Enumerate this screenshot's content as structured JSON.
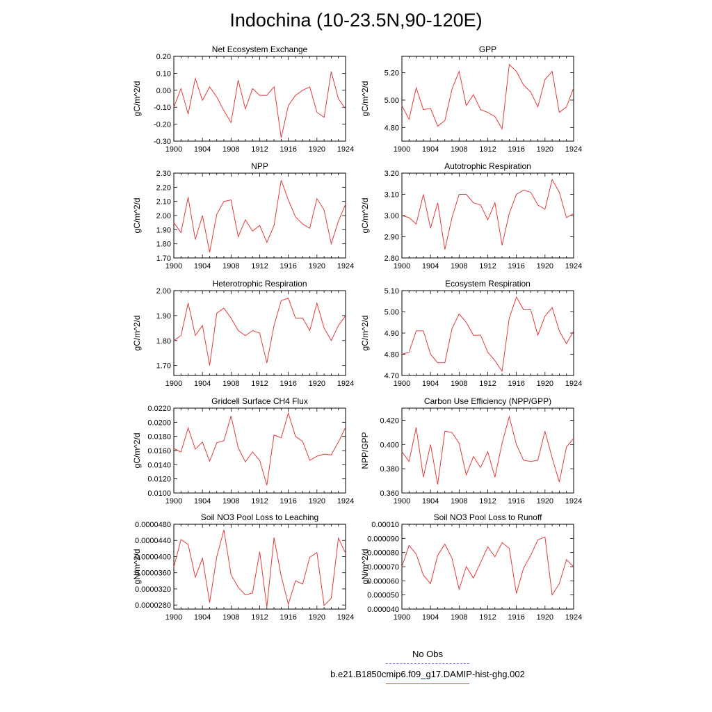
{
  "title": "Indochina (10-23.5N,90-120E)",
  "legend": {
    "obs_label": "No Obs",
    "obs_color": "#6b6bd6",
    "model_label": "b.e21.B1850cmip6.f09_g17.DAMIP-hist-ghg.002",
    "model_color": "#e33b3b"
  },
  "chart_data": [
    {
      "type": "line",
      "title": "Net Ecosystem Exchange",
      "ylabel": "gC/m^2/d",
      "xlim": [
        1900,
        1924
      ],
      "ylim": [
        -0.3,
        0.2
      ],
      "xticks": [
        "1900",
        "1904",
        "1908",
        "1912",
        "1916",
        "1920",
        "1924"
      ],
      "yticks": [
        "-0.30",
        "-0.20",
        "-0.10",
        "0.00",
        "0.10",
        "0.20"
      ],
      "x": [
        1900,
        1901,
        1902,
        1903,
        1904,
        1905,
        1906,
        1907,
        1908,
        1909,
        1910,
        1911,
        1912,
        1913,
        1914,
        1915,
        1916,
        1917,
        1918,
        1919,
        1920,
        1921,
        1922,
        1923,
        1924
      ],
      "series": [
        {
          "name": "b.e21.B1850cmip6.f09_g17.DAMIP-hist-ghg.002",
          "values": [
            -0.1,
            0.01,
            -0.14,
            0.07,
            -0.06,
            0.02,
            -0.04,
            -0.12,
            -0.19,
            0.06,
            -0.11,
            0.01,
            -0.03,
            -0.03,
            0.02,
            -0.28,
            -0.09,
            -0.03,
            0.0,
            0.02,
            -0.13,
            -0.16,
            0.11,
            -0.05,
            -0.11
          ]
        }
      ]
    },
    {
      "type": "line",
      "title": "GPP",
      "ylabel": "gC/m^2/d",
      "xlim": [
        1900,
        1924
      ],
      "ylim": [
        4.7,
        5.32
      ],
      "xticks": [
        "1900",
        "1904",
        "1908",
        "1912",
        "1916",
        "1920",
        "1924"
      ],
      "yticks": [
        "4.80",
        "5.00",
        "5.20"
      ],
      "x": [
        1900,
        1901,
        1902,
        1903,
        1904,
        1905,
        1906,
        1907,
        1908,
        1909,
        1910,
        1911,
        1912,
        1913,
        1914,
        1915,
        1916,
        1917,
        1918,
        1919,
        1920,
        1921,
        1922,
        1923,
        1924
      ],
      "series": [
        {
          "name": "b.e21.B1850cmip6.f09_g17.DAMIP-hist-ghg.002",
          "values": [
            4.96,
            4.86,
            5.09,
            4.93,
            4.94,
            4.81,
            4.85,
            5.08,
            5.21,
            4.96,
            5.04,
            4.93,
            4.91,
            4.88,
            4.79,
            5.26,
            5.21,
            5.11,
            5.06,
            4.95,
            5.15,
            5.21,
            4.91,
            4.95,
            5.09
          ]
        }
      ]
    },
    {
      "type": "line",
      "title": "NPP",
      "ylabel": "gC/m^2/d",
      "xlim": [
        1900,
        1924
      ],
      "ylim": [
        1.7,
        2.3
      ],
      "xticks": [
        "1900",
        "1904",
        "1908",
        "1912",
        "1916",
        "1920",
        "1924"
      ],
      "yticks": [
        "1.70",
        "1.80",
        "1.90",
        "2.00",
        "2.10",
        "2.20",
        "2.30"
      ],
      "x": [
        1900,
        1901,
        1902,
        1903,
        1904,
        1905,
        1906,
        1907,
        1908,
        1909,
        1910,
        1911,
        1912,
        1913,
        1914,
        1915,
        1916,
        1917,
        1918,
        1919,
        1920,
        1921,
        1922,
        1923,
        1924
      ],
      "series": [
        {
          "name": "b.e21.B1850cmip6.f09_g17.DAMIP-hist-ghg.002",
          "values": [
            1.95,
            1.88,
            2.13,
            1.83,
            2.0,
            1.74,
            2.01,
            2.1,
            2.11,
            1.85,
            1.97,
            1.89,
            1.93,
            1.81,
            1.93,
            2.25,
            2.11,
            1.99,
            1.94,
            1.91,
            2.12,
            2.04,
            1.8,
            1.96,
            2.08
          ]
        }
      ]
    },
    {
      "type": "line",
      "title": "Autotrophic Respiration",
      "ylabel": "gC/m^2/d",
      "xlim": [
        1900,
        1924
      ],
      "ylim": [
        2.8,
        3.2
      ],
      "xticks": [
        "1900",
        "1904",
        "1908",
        "1912",
        "1916",
        "1920",
        "1924"
      ],
      "yticks": [
        "2.80",
        "2.90",
        "3.00",
        "3.10",
        "3.20"
      ],
      "x": [
        1900,
        1901,
        1902,
        1903,
        1904,
        1905,
        1906,
        1907,
        1908,
        1909,
        1910,
        1911,
        1912,
        1913,
        1914,
        1915,
        1916,
        1917,
        1918,
        1919,
        1920,
        1921,
        1922,
        1923,
        1924
      ],
      "series": [
        {
          "name": "b.e21.B1850cmip6.f09_g17.DAMIP-hist-ghg.002",
          "values": [
            3.0,
            2.99,
            2.96,
            3.1,
            2.94,
            3.06,
            2.84,
            2.99,
            3.1,
            3.1,
            3.06,
            3.05,
            2.98,
            3.06,
            2.86,
            3.01,
            3.1,
            3.12,
            3.11,
            3.05,
            3.03,
            3.17,
            3.11,
            2.99,
            3.01
          ]
        }
      ]
    },
    {
      "type": "line",
      "title": "Heterotrophic Respiration",
      "ylabel": "gC/m^2/d",
      "xlim": [
        1900,
        1924
      ],
      "ylim": [
        1.66,
        2.0
      ],
      "xticks": [
        "1900",
        "1904",
        "1908",
        "1912",
        "1916",
        "1920",
        "1924"
      ],
      "yticks": [
        "1.70",
        "1.80",
        "1.90",
        "2.00"
      ],
      "x": [
        1900,
        1901,
        1902,
        1903,
        1904,
        1905,
        1906,
        1907,
        1908,
        1909,
        1910,
        1911,
        1912,
        1913,
        1914,
        1915,
        1916,
        1917,
        1918,
        1919,
        1920,
        1921,
        1922,
        1923,
        1924
      ],
      "series": [
        {
          "name": "b.e21.B1850cmip6.f09_g17.DAMIP-hist-ghg.002",
          "values": [
            1.8,
            1.82,
            1.95,
            1.82,
            1.86,
            1.7,
            1.91,
            1.93,
            1.89,
            1.84,
            1.82,
            1.84,
            1.83,
            1.71,
            1.86,
            1.96,
            1.97,
            1.89,
            1.89,
            1.84,
            1.95,
            1.85,
            1.8,
            1.86,
            1.9
          ]
        }
      ]
    },
    {
      "type": "line",
      "title": "Ecosystem Respiration",
      "ylabel": "gC/m^2/d",
      "xlim": [
        1900,
        1924
      ],
      "ylim": [
        4.7,
        5.1
      ],
      "xticks": [
        "1900",
        "1904",
        "1908",
        "1912",
        "1916",
        "1920",
        "1924"
      ],
      "yticks": [
        "4.70",
        "4.80",
        "4.90",
        "5.00",
        "5.10"
      ],
      "x": [
        1900,
        1901,
        1902,
        1903,
        1904,
        1905,
        1906,
        1907,
        1908,
        1909,
        1910,
        1911,
        1912,
        1913,
        1914,
        1915,
        1916,
        1917,
        1918,
        1919,
        1920,
        1921,
        1922,
        1923,
        1924
      ],
      "series": [
        {
          "name": "b.e21.B1850cmip6.f09_g17.DAMIP-hist-ghg.002",
          "values": [
            4.8,
            4.81,
            4.91,
            4.91,
            4.8,
            4.76,
            4.76,
            4.92,
            4.99,
            4.95,
            4.89,
            4.89,
            4.81,
            4.77,
            4.72,
            4.97,
            5.07,
            5.01,
            5.01,
            4.89,
            4.98,
            5.02,
            4.91,
            4.85,
            4.91
          ]
        }
      ]
    },
    {
      "type": "line",
      "title": "Gridcell Surface CH4 Flux",
      "ylabel": "gC/m^2/d",
      "xlim": [
        1900,
        1924
      ],
      "ylim": [
        0.01,
        0.022
      ],
      "xticks": [
        "1900",
        "1904",
        "1908",
        "1912",
        "1916",
        "1920",
        "1924"
      ],
      "yticks": [
        "0.0100",
        "0.0120",
        "0.0140",
        "0.0160",
        "0.0180",
        "0.0200",
        "0.0220"
      ],
      "x": [
        1900,
        1901,
        1902,
        1903,
        1904,
        1905,
        1906,
        1907,
        1908,
        1909,
        1910,
        1911,
        1912,
        1913,
        1914,
        1915,
        1916,
        1917,
        1918,
        1919,
        1920,
        1921,
        1922,
        1923,
        1924
      ],
      "series": [
        {
          "name": "b.e21.B1850cmip6.f09_g17.DAMIP-hist-ghg.002",
          "values": [
            0.0163,
            0.0158,
            0.0192,
            0.0162,
            0.0172,
            0.0145,
            0.0171,
            0.0174,
            0.0209,
            0.0164,
            0.0144,
            0.0158,
            0.0146,
            0.0111,
            0.0182,
            0.0178,
            0.0213,
            0.018,
            0.0173,
            0.0146,
            0.0152,
            0.0155,
            0.0154,
            0.0172,
            0.0193
          ]
        }
      ]
    },
    {
      "type": "line",
      "title": "Carbon Use Efficiency (NPP/GPP)",
      "ylabel": "NPP/GPP",
      "xlim": [
        1900,
        1924
      ],
      "ylim": [
        0.36,
        0.43
      ],
      "xticks": [
        "1900",
        "1904",
        "1908",
        "1912",
        "1916",
        "1920",
        "1924"
      ],
      "yticks": [
        "0.360",
        "0.380",
        "0.400",
        "0.420"
      ],
      "x": [
        1900,
        1901,
        1902,
        1903,
        1904,
        1905,
        1906,
        1907,
        1908,
        1909,
        1910,
        1911,
        1912,
        1913,
        1914,
        1915,
        1916,
        1917,
        1918,
        1919,
        1920,
        1921,
        1922,
        1923,
        1924
      ],
      "series": [
        {
          "name": "b.e21.B1850cmip6.f09_g17.DAMIP-hist-ghg.002",
          "values": [
            0.394,
            0.386,
            0.414,
            0.373,
            0.4,
            0.367,
            0.411,
            0.41,
            0.401,
            0.375,
            0.39,
            0.381,
            0.394,
            0.373,
            0.401,
            0.423,
            0.4,
            0.387,
            0.386,
            0.387,
            0.411,
            0.389,
            0.369,
            0.398,
            0.405
          ]
        }
      ]
    },
    {
      "type": "line",
      "title": "Soil NO3 Pool Loss to Leaching",
      "ylabel": "gN/m^2/d",
      "xlim": [
        1900,
        1924
      ],
      "ylim": [
        2.7e-05,
        4.8e-05
      ],
      "xticks": [
        "1900",
        "1904",
        "1908",
        "1912",
        "1916",
        "1920",
        "1924"
      ],
      "yticks": [
        "0.0000280",
        "0.0000320",
        "0.0000360",
        "0.0000400",
        "0.0000440",
        "0.0000480"
      ],
      "x": [
        1900,
        1901,
        1902,
        1903,
        1904,
        1905,
        1906,
        1907,
        1908,
        1909,
        1910,
        1911,
        1912,
        1913,
        1914,
        1915,
        1916,
        1917,
        1918,
        1919,
        1920,
        1921,
        1922,
        1923,
        1924
      ],
      "series": [
        {
          "name": "b.e21.B1850cmip6.f09_g17.DAMIP-hist-ghg.002",
          "values": [
            3.74e-05,
            4.42e-05,
            4.3e-05,
            3.49e-05,
            3.96e-05,
            2.86e-05,
            4e-05,
            4.66e-05,
            3.55e-05,
            3.24e-05,
            3.05e-05,
            3.1e-05,
            4.12e-05,
            2.75e-05,
            4.47e-05,
            3.52e-05,
            2.82e-05,
            3.4e-05,
            3.32e-05,
            3.98e-05,
            4.1e-05,
            2.79e-05,
            2.97e-05,
            4.46e-05,
            4.08e-05
          ]
        }
      ]
    },
    {
      "type": "line",
      "title": "Soil NO3 Pool Loss to Runoff",
      "ylabel": "gN/m^2/d",
      "xlim": [
        1900,
        1924
      ],
      "ylim": [
        4e-05,
        0.0001
      ],
      "xticks": [
        "1900",
        "1904",
        "1908",
        "1912",
        "1916",
        "1920",
        "1924"
      ],
      "yticks": [
        "0.000040",
        "0.000050",
        "0.000060",
        "0.000070",
        "0.000080",
        "0.000090",
        "0.00010"
      ],
      "x": [
        1900,
        1901,
        1902,
        1903,
        1904,
        1905,
        1906,
        1907,
        1908,
        1909,
        1910,
        1911,
        1912,
        1913,
        1914,
        1915,
        1916,
        1917,
        1918,
        1919,
        1920,
        1921,
        1922,
        1923,
        1924
      ],
      "series": [
        {
          "name": "b.e21.B1850cmip6.f09_g17.DAMIP-hist-ghg.002",
          "values": [
            7e-05,
            8.5e-05,
            7.9e-05,
            6.4e-05,
            5.8e-05,
            7.8e-05,
            8.6e-05,
            7.6e-05,
            5.4e-05,
            7e-05,
            6.2e-05,
            7.3e-05,
            8.4e-05,
            7.7e-05,
            8.7e-05,
            8.3e-05,
            5.1e-05,
            6.9e-05,
            7.8e-05,
            8.9e-05,
            9.1e-05,
            5e-05,
            5.8e-05,
            7.5e-05,
            7e-05
          ]
        }
      ]
    }
  ]
}
